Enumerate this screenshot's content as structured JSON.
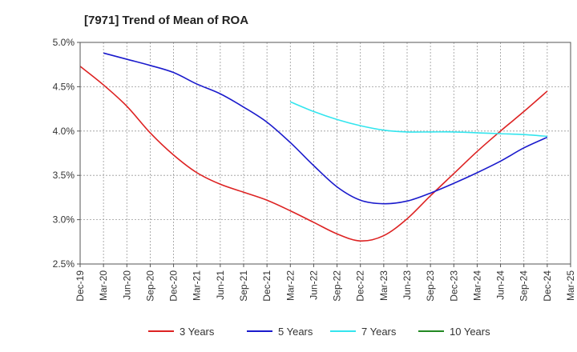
{
  "chart_data": {
    "type": "line",
    "title": "[7971]  Trend of Mean of ROA",
    "xlabel": "",
    "ylabel": "",
    "x_labels": [
      "Dec-19",
      "Mar-20",
      "Jun-20",
      "Sep-20",
      "Dec-20",
      "Mar-21",
      "Jun-21",
      "Sep-21",
      "Dec-21",
      "Mar-22",
      "Jun-22",
      "Sep-22",
      "Dec-22",
      "Mar-23",
      "Jun-23",
      "Sep-23",
      "Dec-23",
      "Mar-24",
      "Jun-24",
      "Sep-24",
      "Dec-24",
      "Mar-25"
    ],
    "ylim": [
      2.5,
      5.0
    ],
    "y_ticks": [
      2.5,
      3.0,
      3.5,
      4.0,
      4.5,
      5.0
    ],
    "y_tick_labels": [
      "2.5%",
      "3.0%",
      "3.5%",
      "4.0%",
      "4.5%",
      "5.0%"
    ],
    "grid": true,
    "legend_position": "bottom",
    "series": [
      {
        "name": "3 Years",
        "color": "#dd2222",
        "values": [
          4.73,
          4.52,
          4.28,
          3.98,
          3.73,
          3.53,
          3.4,
          3.31,
          3.22,
          3.1,
          2.97,
          2.84,
          2.76,
          2.82,
          3.01,
          3.27,
          3.52,
          3.77,
          4.0,
          4.22,
          4.45,
          null
        ]
      },
      {
        "name": "5 Years",
        "color": "#1a1acc",
        "values": [
          null,
          4.88,
          4.81,
          4.74,
          4.66,
          4.53,
          4.42,
          4.27,
          4.1,
          3.87,
          3.61,
          3.37,
          3.22,
          3.18,
          3.21,
          3.3,
          3.41,
          3.53,
          3.66,
          3.81,
          3.93,
          null
        ]
      },
      {
        "name": "7 Years",
        "color": "#33e5ee",
        "values": [
          null,
          null,
          null,
          null,
          null,
          null,
          null,
          null,
          null,
          4.33,
          4.22,
          4.13,
          4.06,
          4.01,
          3.99,
          3.99,
          3.99,
          3.98,
          3.97,
          3.96,
          3.94,
          null
        ]
      },
      {
        "name": "10 Years",
        "color": "#228822",
        "values": [
          null,
          null,
          null,
          null,
          null,
          null,
          null,
          null,
          null,
          null,
          null,
          null,
          null,
          null,
          null,
          null,
          null,
          null,
          null,
          null,
          null,
          null
        ]
      }
    ]
  }
}
